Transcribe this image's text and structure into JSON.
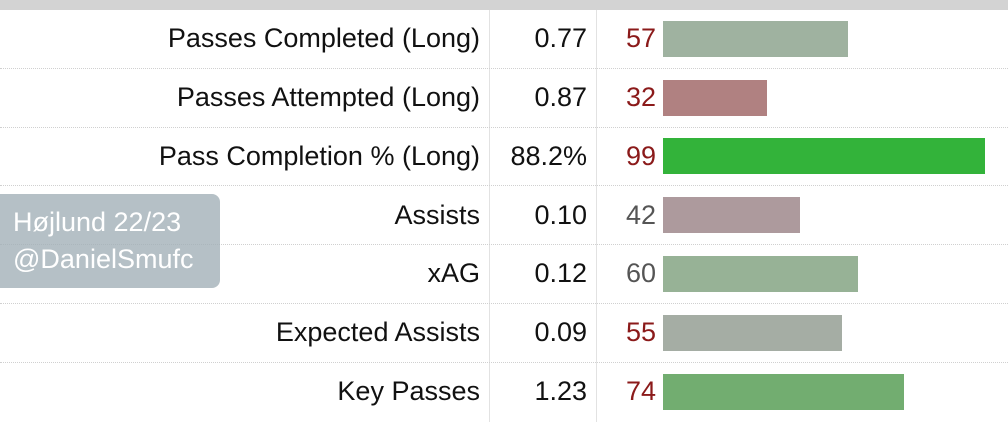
{
  "rows": [
    {
      "stat": "Passes Completed (Long)",
      "value": "0.77",
      "percentile": "57",
      "percentile_level": 57,
      "pct_color": "#8b1a1a",
      "bar_color": "#9fb2a0"
    },
    {
      "stat": "Passes Attempted (Long)",
      "value": "0.87",
      "percentile": "32",
      "percentile_level": 32,
      "pct_color": "#8b1a1a",
      "bar_color": "#b08181"
    },
    {
      "stat": "Pass Completion % (Long)",
      "value": "88.2%",
      "percentile": "99",
      "percentile_level": 99,
      "pct_color": "#8b1a1a",
      "bar_color": "#33b33a"
    },
    {
      "stat": "Assists",
      "value": "0.10",
      "percentile": "42",
      "percentile_level": 42,
      "pct_color": "#555555",
      "bar_color": "#ad9a9d"
    },
    {
      "stat": "xAG",
      "value": "0.12",
      "percentile": "60",
      "percentile_level": 60,
      "pct_color": "#555555",
      "bar_color": "#97b296"
    },
    {
      "stat": "Expected Assists",
      "value": "0.09",
      "percentile": "55",
      "percentile_level": 55,
      "pct_color": "#8b1a1a",
      "bar_color": "#a5ada4"
    },
    {
      "stat": "Key Passes",
      "value": "1.23",
      "percentile": "74",
      "percentile_level": 74,
      "pct_color": "#8b1a1a",
      "bar_color": "#72ad70"
    }
  ],
  "watermark": {
    "line1": "Højlund 22/23",
    "line2": "@DanielSmufc"
  }
}
